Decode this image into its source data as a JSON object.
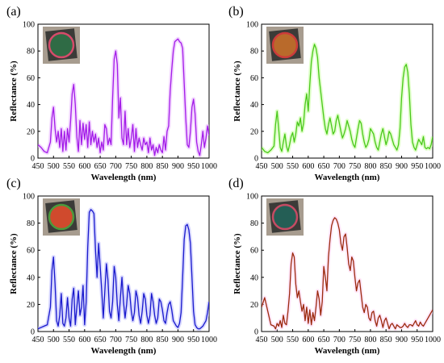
{
  "figure": {
    "panels": [
      {
        "letter": "(a)",
        "xlabel": "Wavelength (nm)",
        "ylabel": "Reflectance (%)",
        "color": "#a31be8",
        "glow": "#e7b3ff",
        "sample_fill": "#2f6b45",
        "sample_rim": "#d64b6a"
      },
      {
        "letter": "(b)",
        "xlabel": "Wavelength (nm)",
        "ylabel": "Reflectance (%)",
        "color": "#49c81a",
        "glow": "#c6ff9e",
        "sample_fill": "#b96a2b",
        "sample_rim": "#cc3b3b"
      },
      {
        "letter": "(c)",
        "xlabel": "Wavelength (nm)",
        "ylabel": "Reflectance (%)",
        "color": "#1919cc",
        "glow": "#b8b8ff",
        "sample_fill": "#d04a2d",
        "sample_rim": "#4a9a3c"
      },
      {
        "letter": "(d)",
        "xlabel": "Wavelength (nm)",
        "ylabel": "Reflectance (%)",
        "color": "#9b2a0e",
        "glow": "#ffd2f4",
        "sample_fill": "#245e55",
        "sample_rim": "#c54b63"
      }
    ]
  },
  "chart_data": [
    {
      "type": "line",
      "panel": "(a)",
      "xlabel": "Wavelength (nm)",
      "ylabel": "Reflectance (%)",
      "xlim": [
        450,
        1000
      ],
      "ylim": [
        0,
        100
      ],
      "xticks": [
        450,
        500,
        550,
        600,
        650,
        700,
        750,
        800,
        850,
        900,
        950,
        1000
      ],
      "yticks": [
        0,
        20,
        40,
        60,
        80,
        100
      ],
      "series": [
        {
          "x": [
            450,
            460,
            470,
            480,
            490,
            495,
            500,
            505,
            510,
            515,
            520,
            525,
            530,
            535,
            540,
            545,
            550,
            555,
            560,
            565,
            570,
            575,
            580,
            585,
            590,
            595,
            600,
            605,
            610,
            615,
            620,
            625,
            630,
            635,
            640,
            645,
            650,
            655,
            660,
            665,
            670,
            675,
            680,
            685,
            690,
            695,
            700,
            705,
            710,
            715,
            720,
            725,
            730,
            735,
            740,
            745,
            750,
            755,
            760,
            765,
            770,
            775,
            780,
            785,
            790,
            795,
            800,
            805,
            810,
            815,
            820,
            825,
            830,
            835,
            840,
            845,
            850,
            855,
            860,
            865,
            870,
            875,
            880,
            885,
            890,
            895,
            900,
            905,
            910,
            915,
            920,
            925,
            930,
            935,
            940,
            945,
            950,
            955,
            960,
            965,
            970,
            975,
            980,
            985,
            990,
            995,
            1000
          ],
          "y": [
            10,
            8,
            5,
            4,
            12,
            30,
            38,
            22,
            12,
            20,
            8,
            22,
            5,
            20,
            6,
            22,
            12,
            28,
            48,
            55,
            40,
            16,
            5,
            28,
            10,
            26,
            14,
            25,
            8,
            27,
            10,
            20,
            12,
            18,
            8,
            15,
            4,
            12,
            6,
            25,
            22,
            10,
            15,
            10,
            45,
            74,
            80,
            70,
            30,
            45,
            15,
            10,
            35,
            10,
            22,
            8,
            15,
            25,
            5,
            22,
            8,
            15,
            10,
            6,
            15,
            10,
            12,
            4,
            15,
            6,
            10,
            2,
            8,
            4,
            10,
            6,
            4,
            16,
            6,
            20,
            24,
            50,
            66,
            80,
            87,
            88,
            89,
            87,
            86,
            82,
            56,
            30,
            10,
            8,
            20,
            38,
            44,
            33,
            12,
            5,
            2,
            10,
            20,
            8,
            15,
            24,
            17
          ]
        }
      ]
    },
    {
      "type": "line",
      "panel": "(b)",
      "xlabel": "Wavelength (nm)",
      "ylabel": "Reflectance (%)",
      "xlim": [
        450,
        1000
      ],
      "ylim": [
        0,
        100
      ],
      "xticks": [
        450,
        500,
        550,
        600,
        650,
        700,
        750,
        800,
        850,
        900,
        950,
        1000
      ],
      "yticks": [
        0,
        20,
        40,
        60,
        80,
        100
      ],
      "series": [
        {
          "x": [
            450,
            460,
            470,
            480,
            490,
            495,
            500,
            505,
            510,
            515,
            520,
            525,
            530,
            535,
            540,
            545,
            550,
            555,
            560,
            565,
            570,
            575,
            580,
            585,
            590,
            595,
            600,
            605,
            610,
            615,
            620,
            625,
            630,
            635,
            640,
            645,
            650,
            655,
            660,
            665,
            670,
            675,
            680,
            685,
            690,
            695,
            700,
            705,
            710,
            715,
            720,
            725,
            730,
            735,
            740,
            745,
            750,
            755,
            760,
            765,
            770,
            775,
            780,
            785,
            790,
            795,
            800,
            805,
            810,
            815,
            820,
            825,
            830,
            835,
            840,
            845,
            850,
            855,
            860,
            865,
            870,
            875,
            880,
            885,
            890,
            895,
            900,
            905,
            910,
            915,
            920,
            925,
            930,
            935,
            940,
            945,
            950,
            955,
            960,
            965,
            970,
            975,
            980,
            985,
            990,
            995,
            1000
          ],
          "y": [
            8,
            5,
            4,
            6,
            9,
            25,
            35,
            22,
            8,
            5,
            12,
            18,
            9,
            5,
            10,
            16,
            19,
            12,
            18,
            27,
            24,
            30,
            20,
            26,
            40,
            48,
            35,
            55,
            72,
            80,
            85,
            82,
            75,
            60,
            50,
            40,
            30,
            22,
            18,
            25,
            30,
            24,
            18,
            20,
            28,
            32,
            26,
            20,
            15,
            18,
            22,
            28,
            24,
            20,
            14,
            10,
            8,
            15,
            22,
            28,
            26,
            18,
            12,
            8,
            10,
            14,
            22,
            20,
            18,
            12,
            8,
            6,
            12,
            18,
            22,
            16,
            10,
            14,
            20,
            18,
            14,
            10,
            8,
            6,
            10,
            22,
            45,
            60,
            68,
            70,
            64,
            48,
            25,
            12,
            8,
            6,
            10,
            14,
            12,
            10,
            16,
            8,
            7,
            8,
            7,
            10,
            16
          ]
        }
      ]
    },
    {
      "type": "line",
      "panel": "(c)",
      "xlabel": "Wavelength (nm)",
      "ylabel": "Reflectance (%)",
      "xlim": [
        450,
        1000
      ],
      "ylim": [
        0,
        100
      ],
      "xticks": [
        450,
        500,
        550,
        600,
        650,
        700,
        750,
        800,
        850,
        900,
        950,
        1000
      ],
      "yticks": [
        0,
        20,
        40,
        60,
        80,
        100
      ],
      "series": [
        {
          "x": [
            450,
            460,
            470,
            480,
            490,
            495,
            500,
            505,
            510,
            515,
            520,
            525,
            530,
            535,
            540,
            545,
            550,
            555,
            560,
            565,
            570,
            575,
            580,
            585,
            590,
            595,
            600,
            605,
            610,
            615,
            620,
            625,
            630,
            635,
            640,
            645,
            650,
            655,
            660,
            665,
            670,
            675,
            680,
            685,
            690,
            695,
            700,
            705,
            710,
            715,
            720,
            725,
            730,
            735,
            740,
            745,
            750,
            755,
            760,
            765,
            770,
            775,
            780,
            785,
            790,
            795,
            800,
            805,
            810,
            815,
            820,
            825,
            830,
            835,
            840,
            845,
            850,
            855,
            860,
            865,
            870,
            875,
            880,
            885,
            890,
            895,
            900,
            905,
            910,
            915,
            920,
            925,
            930,
            935,
            940,
            945,
            950,
            955,
            960,
            965,
            970,
            975,
            980,
            985,
            990,
            995,
            1000
          ],
          "y": [
            2,
            3,
            4,
            5,
            18,
            45,
            55,
            35,
            8,
            4,
            12,
            28,
            6,
            4,
            10,
            25,
            10,
            4,
            24,
            32,
            5,
            18,
            30,
            12,
            18,
            34,
            5,
            22,
            62,
            88,
            90,
            89,
            87,
            60,
            40,
            65,
            48,
            30,
            10,
            30,
            50,
            38,
            15,
            10,
            22,
            48,
            40,
            20,
            8,
            25,
            40,
            22,
            10,
            20,
            34,
            28,
            15,
            8,
            14,
            30,
            25,
            12,
            6,
            15,
            28,
            24,
            12,
            6,
            12,
            28,
            22,
            12,
            6,
            10,
            24,
            22,
            16,
            8,
            6,
            14,
            20,
            22,
            16,
            8,
            6,
            4,
            3,
            6,
            14,
            40,
            68,
            78,
            79,
            75,
            65,
            40,
            15,
            5,
            3,
            2,
            2,
            3,
            4,
            6,
            8,
            14,
            22
          ]
        }
      ]
    },
    {
      "type": "line",
      "panel": "(d)",
      "xlabel": "Wavelength (nm)",
      "ylabel": "Reflectance (%)",
      "xlim": [
        450,
        1000
      ],
      "ylim": [
        0,
        100
      ],
      "xticks": [
        450,
        500,
        550,
        600,
        650,
        700,
        750,
        800,
        850,
        900,
        950,
        1000
      ],
      "yticks": [
        0,
        20,
        40,
        60,
        80,
        100
      ],
      "series": [
        {
          "x": [
            450,
            460,
            470,
            480,
            490,
            495,
            500,
            505,
            510,
            515,
            520,
            525,
            530,
            535,
            540,
            545,
            550,
            555,
            560,
            565,
            570,
            575,
            580,
            585,
            590,
            595,
            600,
            605,
            610,
            615,
            620,
            625,
            630,
            635,
            640,
            645,
            650,
            655,
            660,
            665,
            670,
            675,
            680,
            685,
            690,
            695,
            700,
            705,
            710,
            715,
            720,
            725,
            730,
            735,
            740,
            745,
            750,
            755,
            760,
            765,
            770,
            775,
            780,
            785,
            790,
            795,
            800,
            805,
            810,
            815,
            820,
            825,
            830,
            835,
            840,
            845,
            850,
            855,
            860,
            865,
            870,
            875,
            880,
            885,
            890,
            895,
            900,
            905,
            910,
            915,
            920,
            925,
            930,
            935,
            940,
            945,
            950,
            955,
            960,
            965,
            970,
            975,
            980,
            985,
            990,
            995,
            1000
          ],
          "y": [
            18,
            25,
            15,
            5,
            4,
            2,
            6,
            4,
            8,
            3,
            12,
            6,
            5,
            15,
            28,
            50,
            58,
            55,
            35,
            25,
            30,
            22,
            15,
            20,
            8,
            18,
            6,
            16,
            5,
            14,
            8,
            18,
            30,
            24,
            12,
            22,
            48,
            40,
            30,
            55,
            68,
            78,
            82,
            84,
            83,
            80,
            75,
            65,
            60,
            70,
            72,
            62,
            50,
            45,
            55,
            52,
            40,
            30,
            36,
            38,
            28,
            18,
            14,
            20,
            18,
            10,
            8,
            14,
            15,
            8,
            4,
            10,
            12,
            8,
            3,
            8,
            10,
            6,
            2,
            5,
            6,
            4,
            2,
            5,
            4,
            3,
            3,
            4,
            6,
            4,
            3,
            5,
            5,
            4,
            6,
            8,
            5,
            4,
            7,
            5,
            4,
            6,
            8,
            10,
            12,
            14,
            16
          ]
        }
      ]
    }
  ]
}
